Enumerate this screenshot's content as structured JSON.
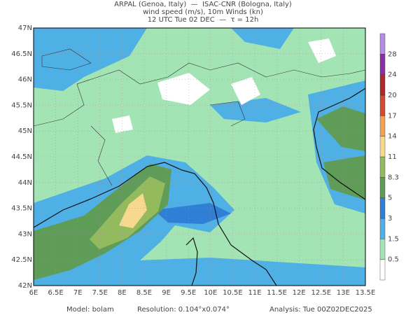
{
  "header": {
    "lines": [
      "ARPAL (Genoa, Italy)  —  ISAC-CNR (Bologna, Italy)",
      "wind speed (m/s), 10m Winds (kn)",
      "12 UTC Tue 02 DEC  —  τ = 12h"
    ]
  },
  "map": {
    "lon_labels": [
      "6E",
      "6.5E",
      "7E",
      "7.5E",
      "8E",
      "8.5E",
      "9E",
      "9.5E",
      "10E",
      "10.5E",
      "11E",
      "11.5E",
      "12E",
      "12.5E",
      "13E",
      "13.5E"
    ],
    "lat_labels": [
      "47N",
      "46.5N",
      "46N",
      "45.5N",
      "45N",
      "44.5N",
      "44N",
      "43.5N",
      "43N",
      "42.5N",
      "42N"
    ]
  },
  "colorbar": {
    "labels": [
      0.5,
      1.5,
      3,
      5,
      8.3,
      11,
      14,
      17,
      20,
      24,
      28
    ],
    "colors": [
      "#ffffff",
      "#a3e4b4",
      "#4fb0e6",
      "#2f7fd6",
      "#5e9c58",
      "#93bb5e",
      "#f6d98e",
      "#efa352",
      "#d34a30",
      "#ac2a2a",
      "#8a2fa4",
      "#b48ce6"
    ]
  },
  "footer": {
    "model": "Model: bolam",
    "resolution": "Resolution: 0.104°x0.074°",
    "analysis": "Analysis: Tue 00Z02DEC2025"
  }
}
